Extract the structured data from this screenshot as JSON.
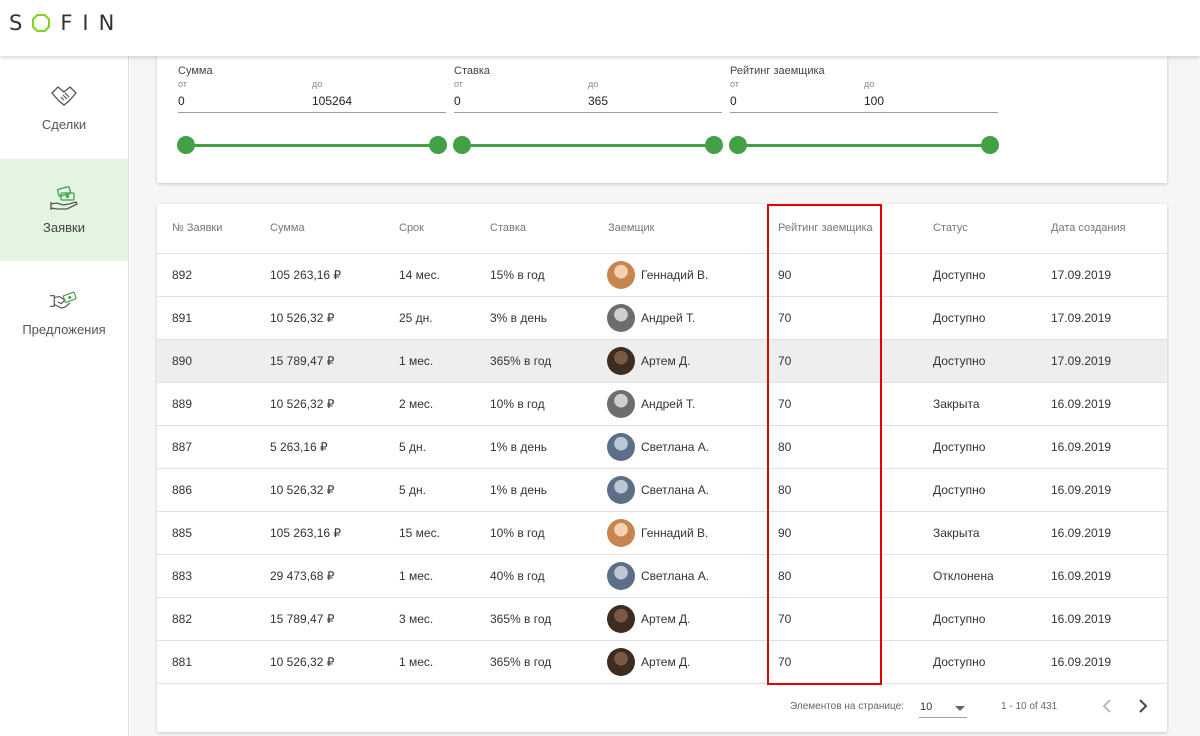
{
  "app": {
    "logo": "SOFIN",
    "logo_rest": "FIN",
    "brand_color": "#43a047"
  },
  "sidebar": {
    "items": [
      {
        "label": "Сделки",
        "icon": "handshake-icon"
      },
      {
        "label": "Заявки",
        "icon": "money-hand-icon",
        "active": true
      },
      {
        "label": "Предложения",
        "icon": "offer-handshake-icon"
      }
    ]
  },
  "filters": [
    {
      "title": "Сумма",
      "from_label": "от",
      "to_label": "до",
      "from": "0",
      "to": "105264"
    },
    {
      "title": "Ставка",
      "from_label": "от",
      "to_label": "до",
      "from": "0",
      "to": "365"
    },
    {
      "title": "Рейтинг заемщика",
      "from_label": "от",
      "to_label": "до",
      "from": "0",
      "to": "100"
    }
  ],
  "table": {
    "columns": [
      "№ Заявки",
      "Сумма",
      "Срок",
      "Ставка",
      "Заемщик",
      "Рейтинг заемщика",
      "Статус",
      "Дата создания"
    ],
    "rows": [
      {
        "id": "892",
        "sum": "105 263,16 ₽",
        "term": "14 мес.",
        "rate": "15% в год",
        "borrower": "Геннадий В.",
        "rating": "90",
        "status": "Доступно",
        "date": "17.09.2019"
      },
      {
        "id": "891",
        "sum": "10 526,32 ₽",
        "term": "25 дн.",
        "rate": "3% в день",
        "borrower": "Андрей Т.",
        "rating": "70",
        "status": "Доступно",
        "date": "17.09.2019"
      },
      {
        "id": "890",
        "sum": "15 789,47 ₽",
        "term": "1 мес.",
        "rate": "365% в год",
        "borrower": "Артем Д.",
        "rating": "70",
        "status": "Доступно",
        "date": "17.09.2019"
      },
      {
        "id": "889",
        "sum": "10 526,32 ₽",
        "term": "2 мес.",
        "rate": "10% в год",
        "borrower": "Андрей Т.",
        "rating": "70",
        "status": "Закрыта",
        "date": "16.09.2019"
      },
      {
        "id": "887",
        "sum": "5 263,16 ₽",
        "term": "5 дн.",
        "rate": "1% в день",
        "borrower": "Светлана А.",
        "rating": "80",
        "status": "Доступно",
        "date": "16.09.2019"
      },
      {
        "id": "886",
        "sum": "10 526,32 ₽",
        "term": "5 дн.",
        "rate": "1% в день",
        "borrower": "Светлана А.",
        "rating": "80",
        "status": "Доступно",
        "date": "16.09.2019"
      },
      {
        "id": "885",
        "sum": "105 263,16 ₽",
        "term": "15 мес.",
        "rate": "10% в год",
        "borrower": "Геннадий В.",
        "rating": "90",
        "status": "Закрыта",
        "date": "16.09.2019"
      },
      {
        "id": "883",
        "sum": "29 473,68 ₽",
        "term": "1 мес.",
        "rate": "40% в год",
        "borrower": "Светлана А.",
        "rating": "80",
        "status": "Отклонена",
        "date": "16.09.2019"
      },
      {
        "id": "882",
        "sum": "15 789,47 ₽",
        "term": "3 мес.",
        "rate": "365% в год",
        "borrower": "Артем Д.",
        "rating": "70",
        "status": "Доступно",
        "date": "16.09.2019"
      },
      {
        "id": "881",
        "sum": "10 526,32 ₽",
        "term": "1 мес.",
        "rate": "365% в год",
        "borrower": "Артем Д.",
        "rating": "70",
        "status": "Доступно",
        "date": "16.09.2019"
      }
    ]
  },
  "paginator": {
    "label": "Элементов на странице:",
    "page_size": "10",
    "range": "1 - 10 of 431"
  }
}
